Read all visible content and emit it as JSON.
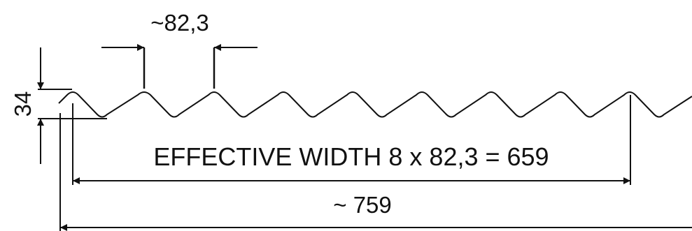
{
  "drawing": {
    "pitch_label": "~82,3",
    "height_label": "34",
    "effective_label": "EFFECTIVE WIDTH 8 x 82,3 = 659",
    "total_label": "~ 759"
  },
  "colors": {
    "line": "#111111",
    "background": "#ffffff"
  }
}
